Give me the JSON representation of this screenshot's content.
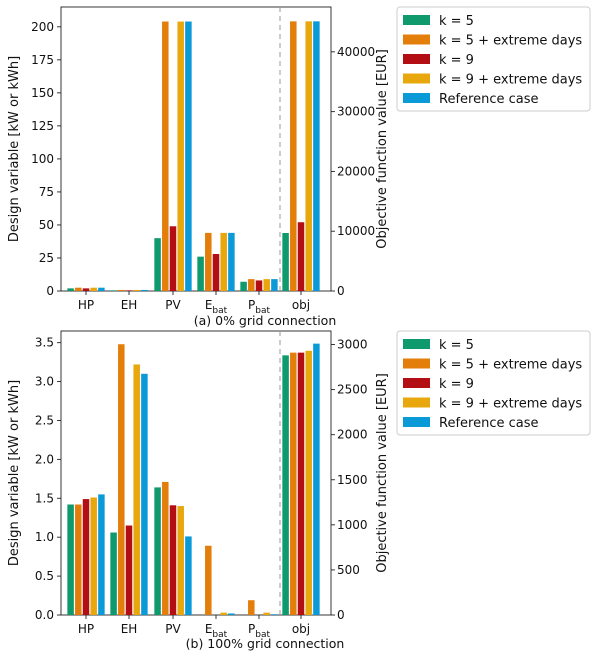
{
  "chart_data": [
    {
      "type": "bar",
      "caption": "(a) 0% grid connection",
      "categories": [
        "HP",
        "EH",
        "PV",
        "E_bat",
        "P_bat"
      ],
      "objective_category": "obj",
      "ylabel_left": "Design variable [kW or kWh]",
      "ylabel_right": "Objective function value [EUR]",
      "ylim_left": [
        0,
        215
      ],
      "ylim_right": [
        0,
        47500
      ],
      "yticks_left": [
        "0",
        "25",
        "50",
        "75",
        "100",
        "125",
        "150",
        "175",
        "200"
      ],
      "yticks_right": [
        "0",
        "10000",
        "20000",
        "30000",
        "40000"
      ],
      "legend_position": "right",
      "series": [
        {
          "name": "k = 5",
          "values": [
            2,
            0.5,
            40,
            26,
            7
          ],
          "objective": 9700
        },
        {
          "name": "k = 5 + extreme days",
          "values": [
            2.5,
            0.8,
            204,
            44,
            9
          ],
          "objective": 45100
        },
        {
          "name": "k = 9",
          "values": [
            2,
            0.5,
            49,
            28,
            8
          ],
          "objective": 11500
        },
        {
          "name": "k = 9 + extreme days",
          "values": [
            2.5,
            0.8,
            204,
            44,
            9
          ],
          "objective": 45100
        },
        {
          "name": "Reference case",
          "values": [
            2.5,
            0.8,
            204,
            44,
            9
          ],
          "objective": 45100
        }
      ]
    },
    {
      "type": "bar",
      "caption": "(b) 100% grid connection",
      "categories": [
        "HP",
        "EH",
        "PV",
        "E_bat",
        "P_bat"
      ],
      "objective_category": "obj",
      "ylabel_left": "Design variable [kW or kWh]",
      "ylabel_right": "Objective function value [EUR]",
      "ylim_left": [
        0,
        3.65
      ],
      "ylim_right": [
        0,
        3150
      ],
      "yticks_left": [
        "0.0",
        "0.5",
        "1.0",
        "1.5",
        "2.0",
        "2.5",
        "3.0",
        "3.5"
      ],
      "yticks_right": [
        "0",
        "500",
        "1000",
        "1500",
        "2000",
        "2500",
        "3000"
      ],
      "legend_position": "right",
      "series": [
        {
          "name": "k = 5",
          "values": [
            1.42,
            1.06,
            1.64,
            0.0,
            0.0
          ],
          "objective": 2880
        },
        {
          "name": "k = 5 + extreme days",
          "values": [
            1.42,
            3.48,
            1.71,
            0.89,
            0.19
          ],
          "objective": 2910
        },
        {
          "name": "k = 9",
          "values": [
            1.49,
            1.15,
            1.41,
            0.0,
            0.0
          ],
          "objective": 2910
        },
        {
          "name": "k = 9 + extreme days",
          "values": [
            1.51,
            3.22,
            1.4,
            0.03,
            0.03
          ],
          "objective": 2930
        },
        {
          "name": "Reference case",
          "values": [
            1.55,
            3.1,
            1.01,
            0.02,
            0.01
          ],
          "objective": 3010
        }
      ]
    }
  ],
  "colors": [
    "#0f9a6e",
    "#e47e0b",
    "#b30e14",
    "#e8a80d",
    "#0b9ad8"
  ],
  "subscript_labels": {
    "E_bat": [
      "E",
      "bat"
    ],
    "P_bat": [
      "P",
      "bat"
    ]
  }
}
